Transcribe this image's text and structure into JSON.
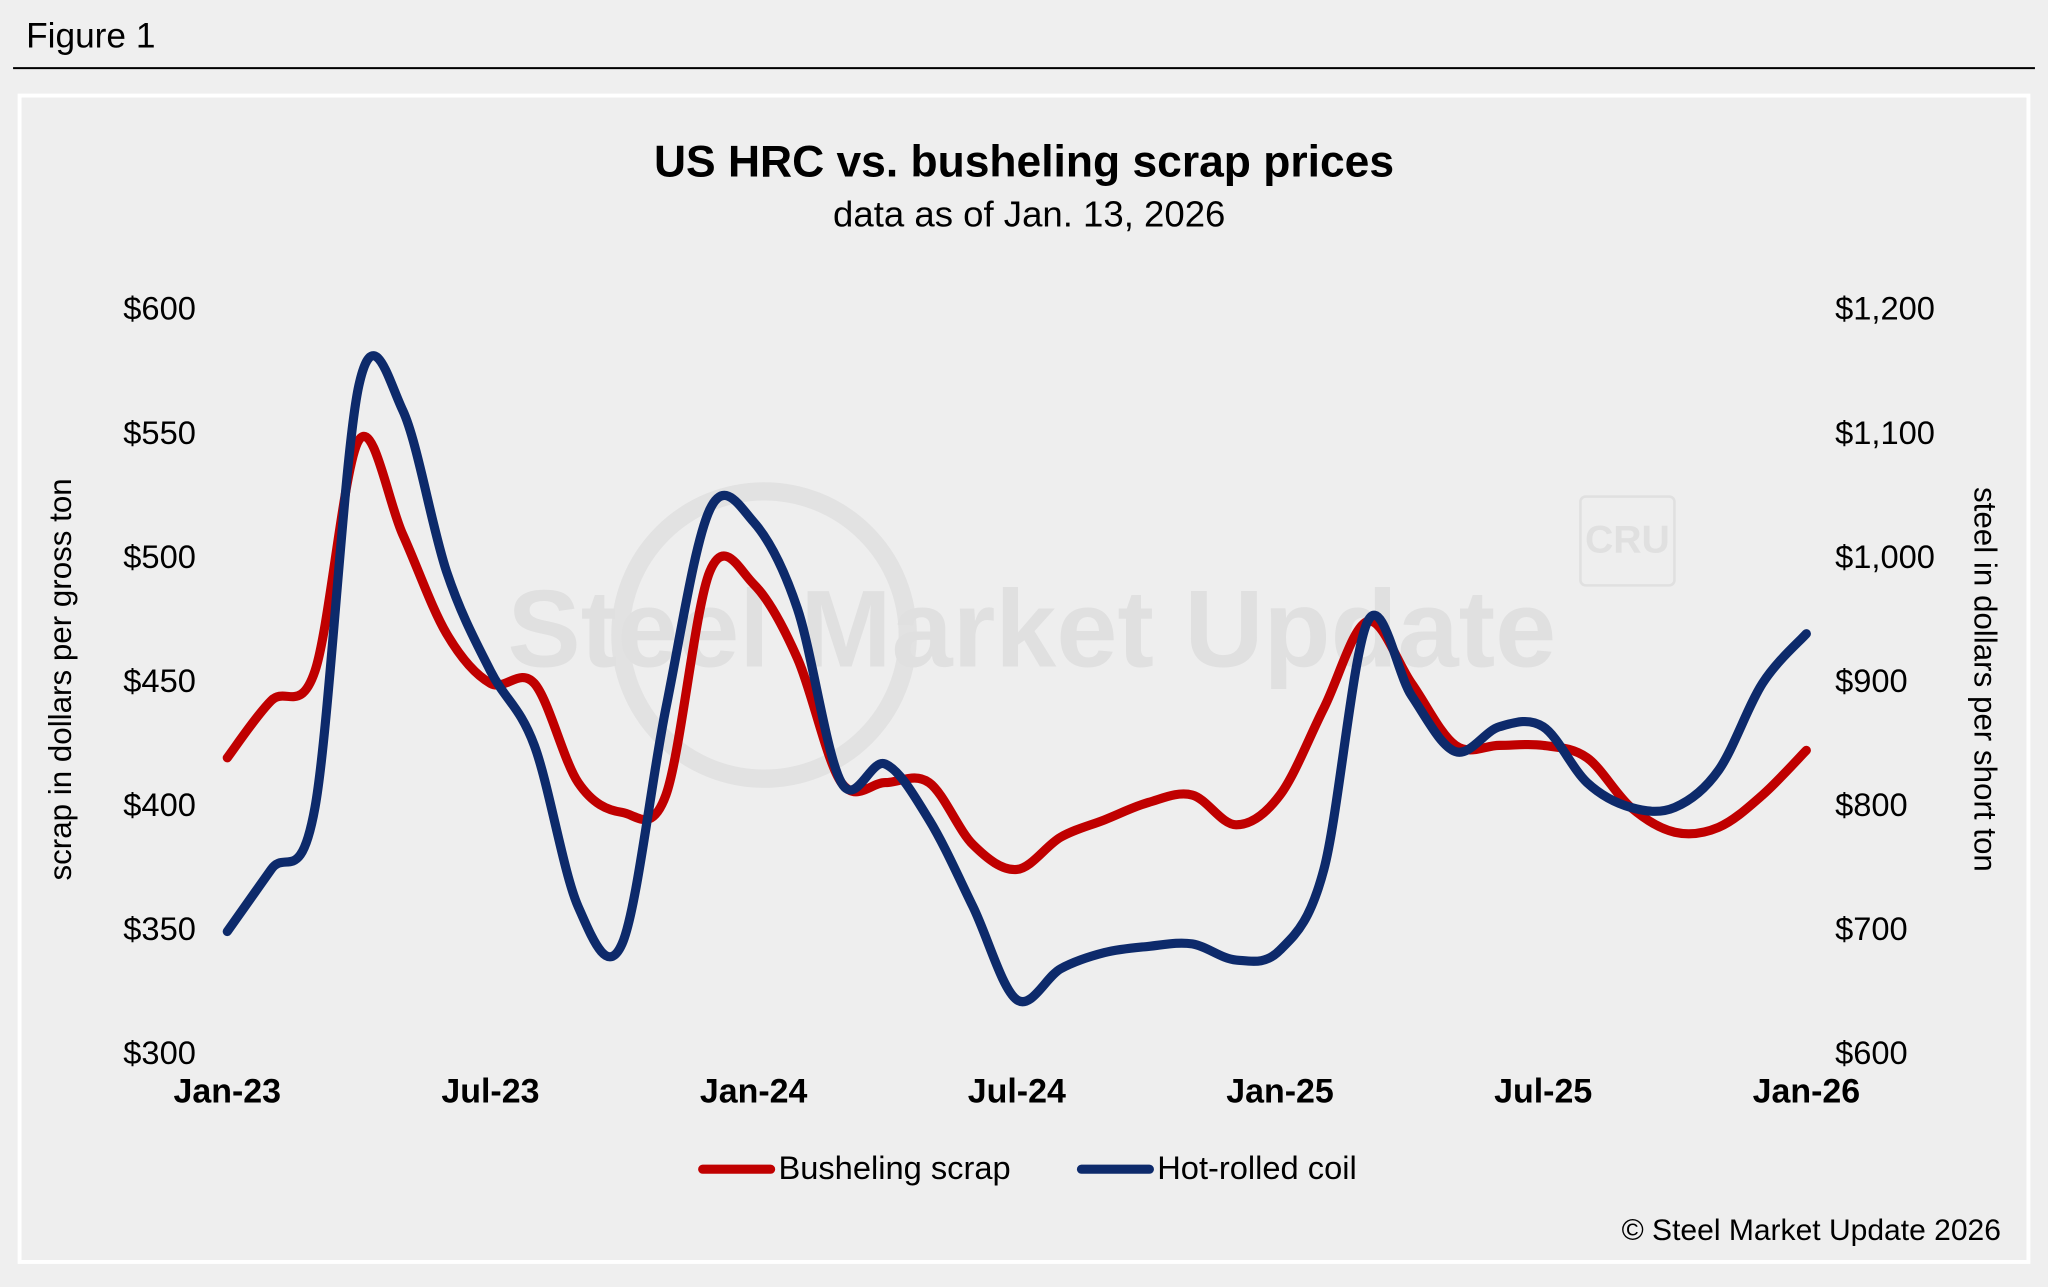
{
  "figure_label": "Figure 1",
  "chart_data": {
    "type": "line",
    "title": "US HRC vs. busheling scrap prices",
    "subtitle": "data as of Jan. 13, 2026",
    "y_label": "scrap in dollars per gross ton",
    "y2_label": "steel in dollars per short ton",
    "watermark": "Steel Market Update",
    "watermark_logo": "CRU",
    "source": "© Steel Market Update 2026",
    "categories": [
      "Jan-23",
      null,
      null,
      null,
      null,
      null,
      "Jul-23",
      null,
      null,
      null,
      null,
      null,
      "Jan-24",
      null,
      null,
      null,
      null,
      null,
      "Jul-24",
      null,
      null,
      null,
      null,
      null,
      "Jan-25",
      null,
      null,
      null,
      null,
      null,
      "Jul-25",
      null,
      null,
      null,
      null,
      null,
      "Jan-26"
    ],
    "ylim": [
      300,
      600
    ],
    "yticks": [
      {
        "value": 300,
        "label": "$300"
      },
      {
        "value": 350,
        "label": "$350"
      },
      {
        "value": 400,
        "label": "$400"
      },
      {
        "value": 450,
        "label": "$450"
      },
      {
        "value": 500,
        "label": "$500"
      },
      {
        "value": 550,
        "label": "$550"
      },
      {
        "value": 600,
        "label": "$600"
      }
    ],
    "y2lim": [
      600,
      1200
    ],
    "y2ticks": [
      {
        "value": 600,
        "label": "$600"
      },
      {
        "value": 700,
        "label": "$700"
      },
      {
        "value": 800,
        "label": "$800"
      },
      {
        "value": 900,
        "label": "$900"
      },
      {
        "value": 1000,
        "label": "$1,000"
      },
      {
        "value": 1100,
        "label": "$1,100"
      },
      {
        "value": 1200,
        "label": "$1,200"
      }
    ],
    "legend": "bottom",
    "series": [
      {
        "name": "Busheling scrap",
        "color": "#c00000",
        "axis": "y",
        "values": [
          420,
          443,
          455,
          548,
          510,
          470,
          450,
          450,
          410,
          398,
          405,
          495,
          490,
          460,
          410,
          410,
          410,
          385,
          375,
          388,
          395,
          402,
          405,
          393,
          405,
          440,
          475,
          450,
          425,
          425,
          425,
          420,
          400,
          390,
          392,
          405,
          423
        ]
      },
      {
        "name": "Hot-rolled coil",
        "color": "#0d2a6b",
        "axis": "y2",
        "values": [
          700,
          750,
          800,
          1140,
          1120,
          990,
          910,
          850,
          720,
          690,
          880,
          1040,
          1030,
          960,
          820,
          835,
          790,
          720,
          645,
          670,
          683,
          688,
          690,
          677,
          685,
          750,
          950,
          890,
          845,
          865,
          865,
          820,
          800,
          800,
          830,
          900,
          940
        ]
      }
    ]
  }
}
